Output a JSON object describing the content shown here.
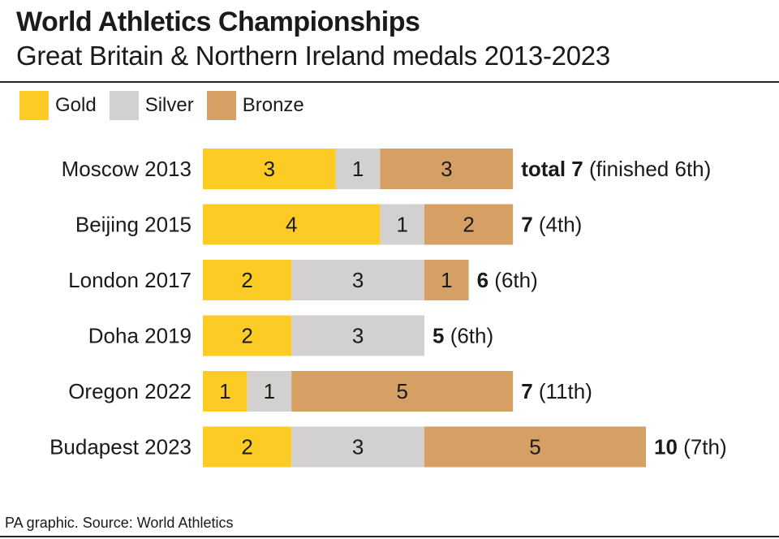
{
  "header": {
    "title": "World Athletics Championships",
    "subtitle": "Great Britain & Northern Ireland medals 2013-2023"
  },
  "legend": [
    {
      "label": "Gold",
      "color": "#fccb24"
    },
    {
      "label": "Silver",
      "color": "#d3d1cf"
    },
    {
      "label": "Bronze",
      "color": "#d6a065"
    }
  ],
  "source": "PA graphic. Source: World Athletics",
  "chart_data": {
    "type": "bar",
    "orientation": "horizontal",
    "stacked": true,
    "categories": [
      "Moscow 2013",
      "Beijing 2015",
      "London 2017",
      "Doha 2019",
      "Oregon 2022",
      "Budapest 2023"
    ],
    "series": [
      {
        "name": "Gold",
        "color": "#fccb24",
        "values": [
          3,
          4,
          2,
          2,
          1,
          2
        ]
      },
      {
        "name": "Silver",
        "color": "#d3d1cf",
        "values": [
          1,
          1,
          3,
          3,
          1,
          3
        ]
      },
      {
        "name": "Bronze",
        "color": "#d6a065",
        "values": [
          3,
          2,
          1,
          0,
          5,
          5
        ]
      }
    ],
    "total_labels": [
      {
        "total": "total 7",
        "rank": "(finished 6th)"
      },
      {
        "total": "7",
        "rank": "(4th)"
      },
      {
        "total": "6",
        "rank": "(6th)"
      },
      {
        "total": "5",
        "rank": "(6th)"
      },
      {
        "total": "7",
        "rank": "(11th)"
      },
      {
        "total": "10",
        "rank": "(7th)"
      }
    ],
    "xlim": [
      0,
      10
    ],
    "grid": false,
    "legend_position": "top-left"
  }
}
